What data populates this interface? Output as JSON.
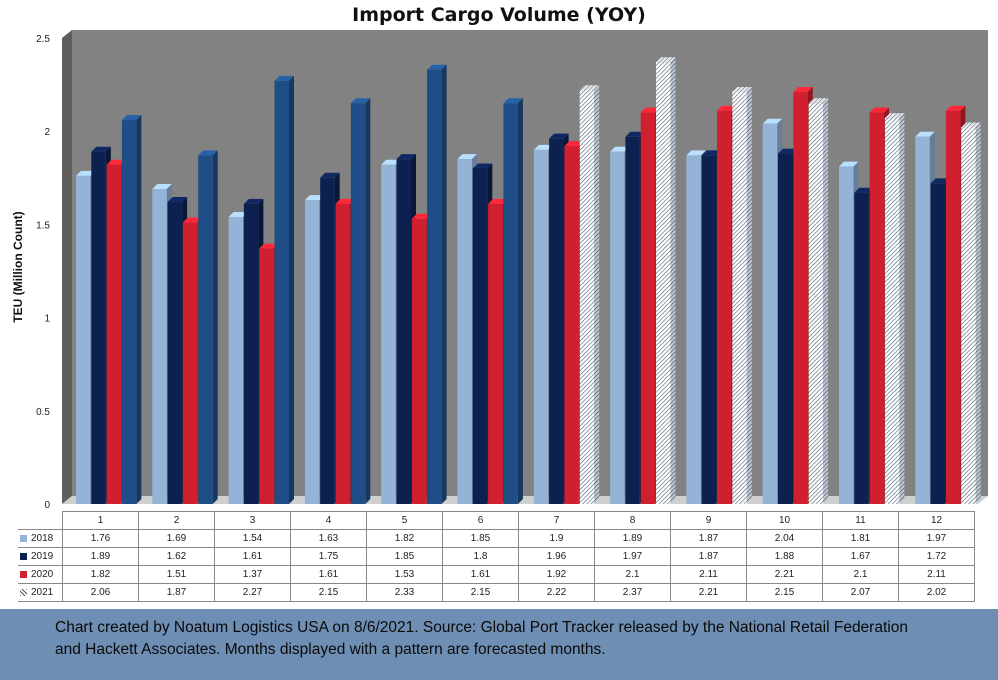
{
  "chart_data": {
    "type": "bar",
    "title": "Import Cargo Volume (YOY)",
    "ylabel": "TEU (Million Count)",
    "xlabel": "",
    "ylim": [
      0,
      2.5
    ],
    "yticks": [
      "0",
      "0.5",
      "1",
      "1.5",
      "2",
      "2.5"
    ],
    "yticks_values": [
      0,
      0.5,
      1,
      1.5,
      2,
      2.5
    ],
    "categories": [
      "1",
      "2",
      "3",
      "4",
      "5",
      "6",
      "7",
      "8",
      "9",
      "10",
      "11",
      "12"
    ],
    "series": [
      {
        "name": "2018",
        "color": "#95b3d7",
        "values": [
          1.76,
          1.69,
          1.54,
          1.63,
          1.82,
          1.85,
          1.9,
          1.89,
          1.87,
          2.04,
          1.81,
          1.97
        ]
      },
      {
        "name": "2019",
        "color": "#0d2150",
        "values": [
          1.89,
          1.62,
          1.61,
          1.75,
          1.85,
          1.8,
          1.96,
          1.97,
          1.87,
          1.88,
          1.67,
          1.72
        ]
      },
      {
        "name": "2020",
        "color": "#d01f2e",
        "values": [
          1.82,
          1.51,
          1.37,
          1.61,
          1.53,
          1.61,
          1.92,
          2.1,
          2.11,
          2.21,
          2.1,
          2.11
        ]
      },
      {
        "name": "2021",
        "color": "#1f4e86",
        "forecast_from_index": 6,
        "values": [
          2.06,
          1.87,
          2.27,
          2.15,
          2.33,
          2.15,
          2.22,
          2.37,
          2.21,
          2.15,
          2.07,
          2.02
        ]
      }
    ],
    "display_values": {
      "2018": [
        "1.76",
        "1.69",
        "1.54",
        "1.63",
        "1.82",
        "1.85",
        "1.9",
        "1.89",
        "1.87",
        "2.04",
        "1.81",
        "1.97"
      ],
      "2019": [
        "1.89",
        "1.62",
        "1.61",
        "1.75",
        "1.85",
        "1.8",
        "1.96",
        "1.97",
        "1.87",
        "1.88",
        "1.67",
        "1.72"
      ],
      "2020": [
        "1.82",
        "1.51",
        "1.37",
        "1.61",
        "1.53",
        "1.61",
        "1.92",
        "2.1",
        "2.11",
        "2.21",
        "2.1",
        "2.11"
      ],
      "2021": [
        "2.06",
        "1.87",
        "2.27",
        "2.15",
        "2.33",
        "2.15",
        "2.22",
        "2.37",
        "2.21",
        "2.15",
        "2.07",
        "2.02"
      ]
    },
    "grid": false,
    "legend": "data-table"
  },
  "footer": {
    "line1": "Chart created by Noatum Logistics USA on 8/6/2021. Source: Global Port Tracker released by the National Retail Federation",
    "line2": "and Hackett Associates. Months displayed with a pattern are forecasted months."
  },
  "colors": {
    "wall": "#828282",
    "wall_side": "#5e5e5e",
    "floor": "#c9c9c9",
    "footer_bg": "#6f8eb4",
    "forecast_pattern": "hatched"
  }
}
